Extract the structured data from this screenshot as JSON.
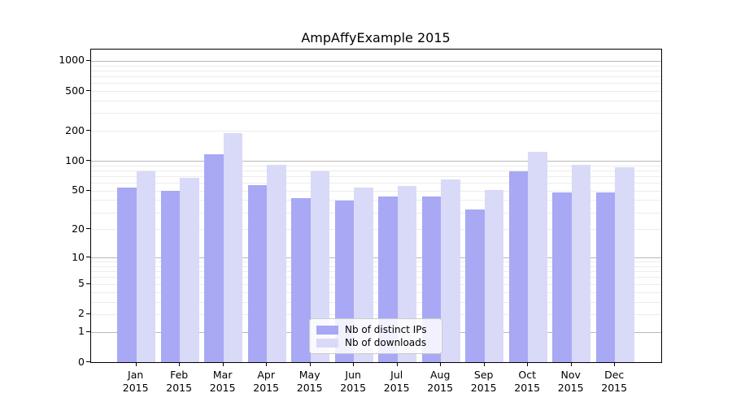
{
  "title": "AmpAffyExample 2015",
  "chart_data": {
    "type": "bar",
    "title": "AmpAffyExample 2015",
    "categories": [
      "Jan",
      "Feb",
      "Mar",
      "Apr",
      "May",
      "Jun",
      "Jul",
      "Aug",
      "Sep",
      "Oct",
      "Nov",
      "Dec"
    ],
    "x_year": "2015",
    "series": [
      {
        "name": "Nb of distinct IPs",
        "color": "#a8a8f5",
        "values": [
          54,
          50,
          116,
          57,
          42,
          40,
          44,
          44,
          32,
          78,
          48,
          48
        ]
      },
      {
        "name": "Nb of downloads",
        "color": "#d9d9f8",
        "values": [
          78,
          67,
          190,
          92,
          78,
          54,
          56,
          65,
          51,
          124,
          92,
          87
        ]
      }
    ],
    "xlabel": "",
    "ylabel": "",
    "y_scale": "log1p",
    "y_ticks": [
      0,
      1,
      2,
      5,
      10,
      20,
      50,
      100,
      200,
      500,
      1000
    ],
    "ylim": [
      0,
      1290
    ],
    "grid": {
      "major": [
        1,
        10,
        100,
        1000
      ],
      "minor": [
        2,
        3,
        4,
        5,
        6,
        7,
        8,
        9,
        20,
        30,
        40,
        50,
        60,
        70,
        80,
        90,
        200,
        300,
        400,
        500,
        600,
        700,
        800,
        900
      ]
    },
    "legend_position": "bottom-center",
    "grid_on": true
  },
  "colors": {
    "major_grid": "#b8b8b8",
    "minor_grid": "#ececec",
    "axis": "#000000"
  }
}
